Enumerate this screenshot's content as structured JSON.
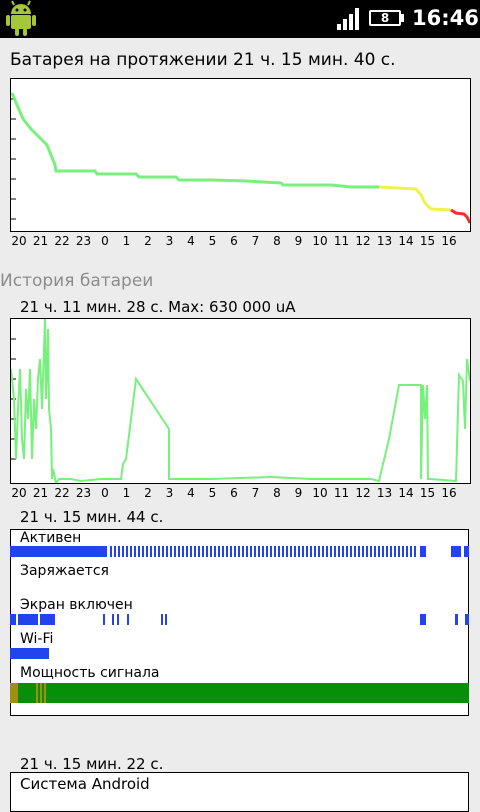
{
  "status_bar": {
    "time": "16:46",
    "battery_level": "8",
    "signal": "signal-bars-full"
  },
  "battery_chart": {
    "title": "Батарея на протяжении 21 ч. 15 мин. 40 с.",
    "ticks": [
      "20",
      "21",
      "22",
      "23",
      "0",
      "1",
      "2",
      "3",
      "4",
      "5",
      "6",
      "7",
      "8",
      "9",
      "10",
      "11",
      "12",
      "13",
      "14",
      "15",
      "16"
    ],
    "colors": {
      "high": "#78f07c",
      "medium": "#f0f050",
      "low": "#f03030"
    }
  },
  "history": {
    "header": "История батареи",
    "current_label": "21 ч. 11 мин. 28 с. Max: 630 000 uA",
    "ticks": [
      "20",
      "21",
      "22",
      "23",
      "0",
      "1",
      "2",
      "3",
      "4",
      "5",
      "6",
      "7",
      "8",
      "9",
      "10",
      "11",
      "12",
      "13",
      "14",
      "15",
      "16"
    ]
  },
  "timeline": {
    "duration": "21 ч. 15 мин. 44 с.",
    "rows": [
      {
        "label": "Активен"
      },
      {
        "label": "Заряжается"
      },
      {
        "label": "Экран включен"
      },
      {
        "label": "Wi-Fi"
      },
      {
        "label": "Мощность сигнала"
      }
    ],
    "colors": {
      "active": "#2244ee",
      "signal_good": "#079007",
      "signal_mid": "#a09010"
    }
  },
  "system_section": {
    "duration": "21 ч. 15 мин. 22 с.",
    "first_item": "Система Android"
  }
}
